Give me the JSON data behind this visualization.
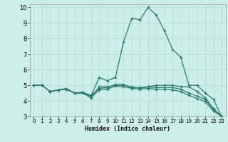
{
  "xlabel": "Humidex (Indice chaleur)",
  "bg_color": "#cceee8",
  "grid_color": "#b8ddd8",
  "line_color": "#2a7a70",
  "xlim": [
    -0.5,
    23.5
  ],
  "ylim": [
    3,
    10.2
  ],
  "xticks": [
    0,
    1,
    2,
    3,
    4,
    5,
    6,
    7,
    8,
    9,
    10,
    11,
    12,
    13,
    14,
    15,
    16,
    17,
    18,
    19,
    20,
    21,
    22,
    23
  ],
  "yticks": [
    3,
    4,
    5,
    6,
    7,
    8,
    9,
    10
  ],
  "lines": [
    {
      "x": [
        0,
        1,
        2,
        3,
        4,
        5,
        6,
        7,
        8,
        9,
        10,
        11,
        12,
        13,
        14,
        15,
        16,
        17,
        18,
        19,
        20,
        21,
        22,
        23
      ],
      "y": [
        5.0,
        5.0,
        4.6,
        4.7,
        4.8,
        4.5,
        4.5,
        4.3,
        5.5,
        5.3,
        5.5,
        7.8,
        9.3,
        9.2,
        10.0,
        9.5,
        8.5,
        7.3,
        6.8,
        5.0,
        5.0,
        4.5,
        4.1,
        3.0
      ]
    },
    {
      "x": [
        0,
        1,
        2,
        3,
        4,
        5,
        6,
        7,
        8,
        9,
        10,
        11,
        12,
        13,
        14,
        15,
        16,
        17,
        18,
        19,
        20,
        21,
        22,
        23
      ],
      "y": [
        5.0,
        5.0,
        4.6,
        4.7,
        4.75,
        4.5,
        4.55,
        4.2,
        4.9,
        4.9,
        5.0,
        5.0,
        4.9,
        4.8,
        4.9,
        5.0,
        5.0,
        5.0,
        4.9,
        4.9,
        4.6,
        4.2,
        3.5,
        3.0
      ]
    },
    {
      "x": [
        0,
        1,
        2,
        3,
        4,
        5,
        6,
        7,
        8,
        9,
        10,
        11,
        12,
        13,
        14,
        15,
        16,
        17,
        18,
        19,
        20,
        21,
        22,
        23
      ],
      "y": [
        5.0,
        5.0,
        4.6,
        4.7,
        4.75,
        4.5,
        4.55,
        4.35,
        4.8,
        4.85,
        5.05,
        5.05,
        4.85,
        4.85,
        4.9,
        4.85,
        4.85,
        4.85,
        4.75,
        4.5,
        4.3,
        4.1,
        3.45,
        3.0
      ]
    },
    {
      "x": [
        2,
        3,
        4,
        5,
        6,
        7,
        8,
        9,
        10,
        11,
        12,
        13,
        14,
        15,
        16,
        17,
        18,
        19,
        20,
        21,
        22,
        23
      ],
      "y": [
        4.6,
        4.7,
        4.75,
        4.5,
        4.5,
        4.2,
        4.7,
        4.75,
        4.95,
        4.9,
        4.8,
        4.75,
        4.8,
        4.75,
        4.75,
        4.7,
        4.6,
        4.35,
        4.15,
        3.95,
        3.35,
        3.0
      ]
    }
  ]
}
